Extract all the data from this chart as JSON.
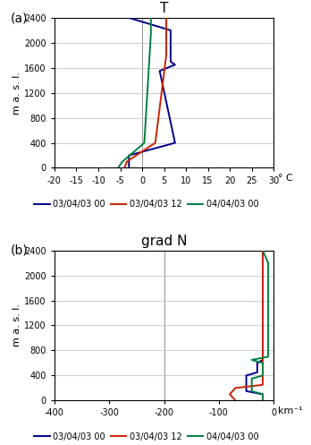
{
  "title_a": "T",
  "title_b": "grad N",
  "ylabel": "m a. s. l.",
  "xlabel_a": "° C",
  "xlabel_b": "km⁻¹",
  "colors": {
    "blue": "#00008B",
    "red": "#CC2200",
    "green": "#008040"
  },
  "legend_labels": [
    "03/04/03 00",
    "03/04/03 12",
    "04/04/03 00"
  ],
  "T_xlim": [
    -20,
    30
  ],
  "T_xticks": [
    -20,
    -15,
    -10,
    -5,
    0,
    5,
    10,
    15,
    20,
    25,
    30
  ],
  "gradN_xlim": [
    -400,
    0
  ],
  "gradN_xticks": [
    -400,
    -300,
    -200,
    -100,
    0
  ],
  "ylim": [
    0,
    2400
  ],
  "yticks": [
    0,
    400,
    800,
    1200,
    1600,
    2000,
    2400
  ],
  "T_blue_x": [
    -3,
    -3,
    7.5,
    4.0,
    7.5,
    6.5,
    6.5,
    -3
  ],
  "T_blue_y": [
    0,
    200,
    400,
    1550,
    1650,
    1700,
    2200,
    2400
  ],
  "T_red_x": [
    -4,
    -3.5,
    3.0,
    5.5,
    5.5
  ],
  "T_red_y": [
    0,
    100,
    400,
    1800,
    2400
  ],
  "T_green_x": [
    -5.5,
    -4.5,
    0.5,
    2.0,
    2.0
  ],
  "T_green_y": [
    0,
    100,
    400,
    2150,
    2400
  ],
  "N_blue_x": [
    -20,
    -20,
    -50,
    -50,
    -30,
    -30,
    -20,
    -20
  ],
  "N_blue_y": [
    0,
    100,
    150,
    400,
    450,
    600,
    650,
    2400
  ],
  "N_red_x": [
    -70,
    -80,
    -70,
    -20,
    -20,
    -20
  ],
  "N_red_y": [
    0,
    100,
    200,
    250,
    400,
    2400
  ],
  "N_green_x": [
    -20,
    -20,
    -40,
    -40,
    -20,
    -20,
    -40,
    -10,
    -10,
    -20
  ],
  "N_green_y": [
    0,
    100,
    150,
    350,
    400,
    600,
    650,
    700,
    2200,
    2400
  ]
}
